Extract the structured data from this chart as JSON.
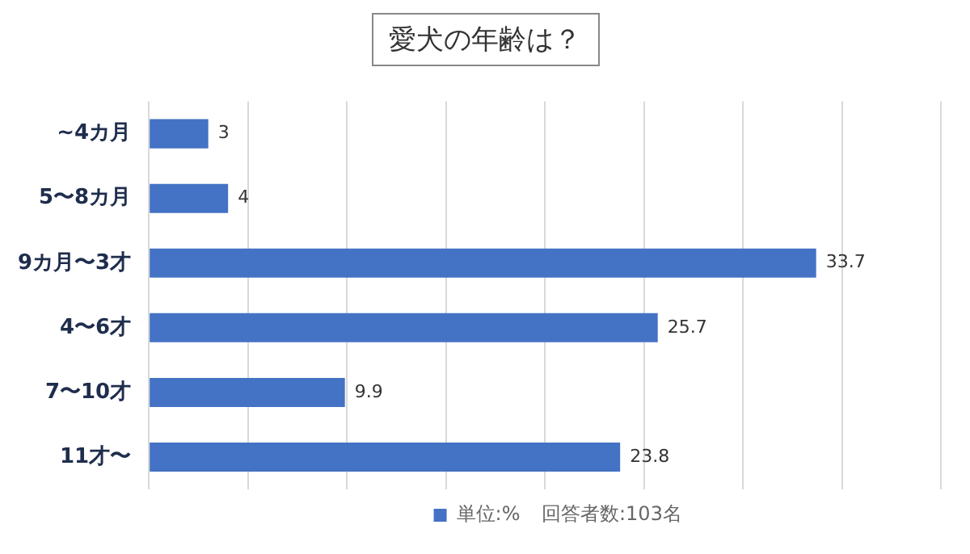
{
  "chart_data": {
    "type": "bar",
    "orientation": "horizontal",
    "title": "愛犬の年齢は？",
    "categories": [
      "~4カ月",
      "5〜8カ月",
      "9カ月〜3才",
      "4〜6才",
      "7〜10才",
      "11才〜"
    ],
    "series": [
      {
        "name": "単位:%",
        "color": "#4472c4",
        "values": [
          3,
          4,
          33.7,
          25.7,
          9.9,
          23.8
        ]
      }
    ],
    "xlim": [
      0,
      40
    ],
    "xticks": [
      {
        "value": 0,
        "label": null
      },
      {
        "value": 5,
        "label": null
      },
      {
        "value": 10,
        "label": null
      },
      {
        "value": 15,
        "label": null
      },
      {
        "value": 20,
        "label": null
      },
      {
        "value": 25,
        "label": null
      },
      {
        "value": 30,
        "label": null
      },
      {
        "value": 35,
        "label": null
      },
      {
        "value": 40,
        "label": null
      }
    ],
    "tick_labels": "y",
    "grid": "x",
    "data_labels": true,
    "legend": "bottom",
    "annotations": [
      "回答者数:103名"
    ]
  }
}
